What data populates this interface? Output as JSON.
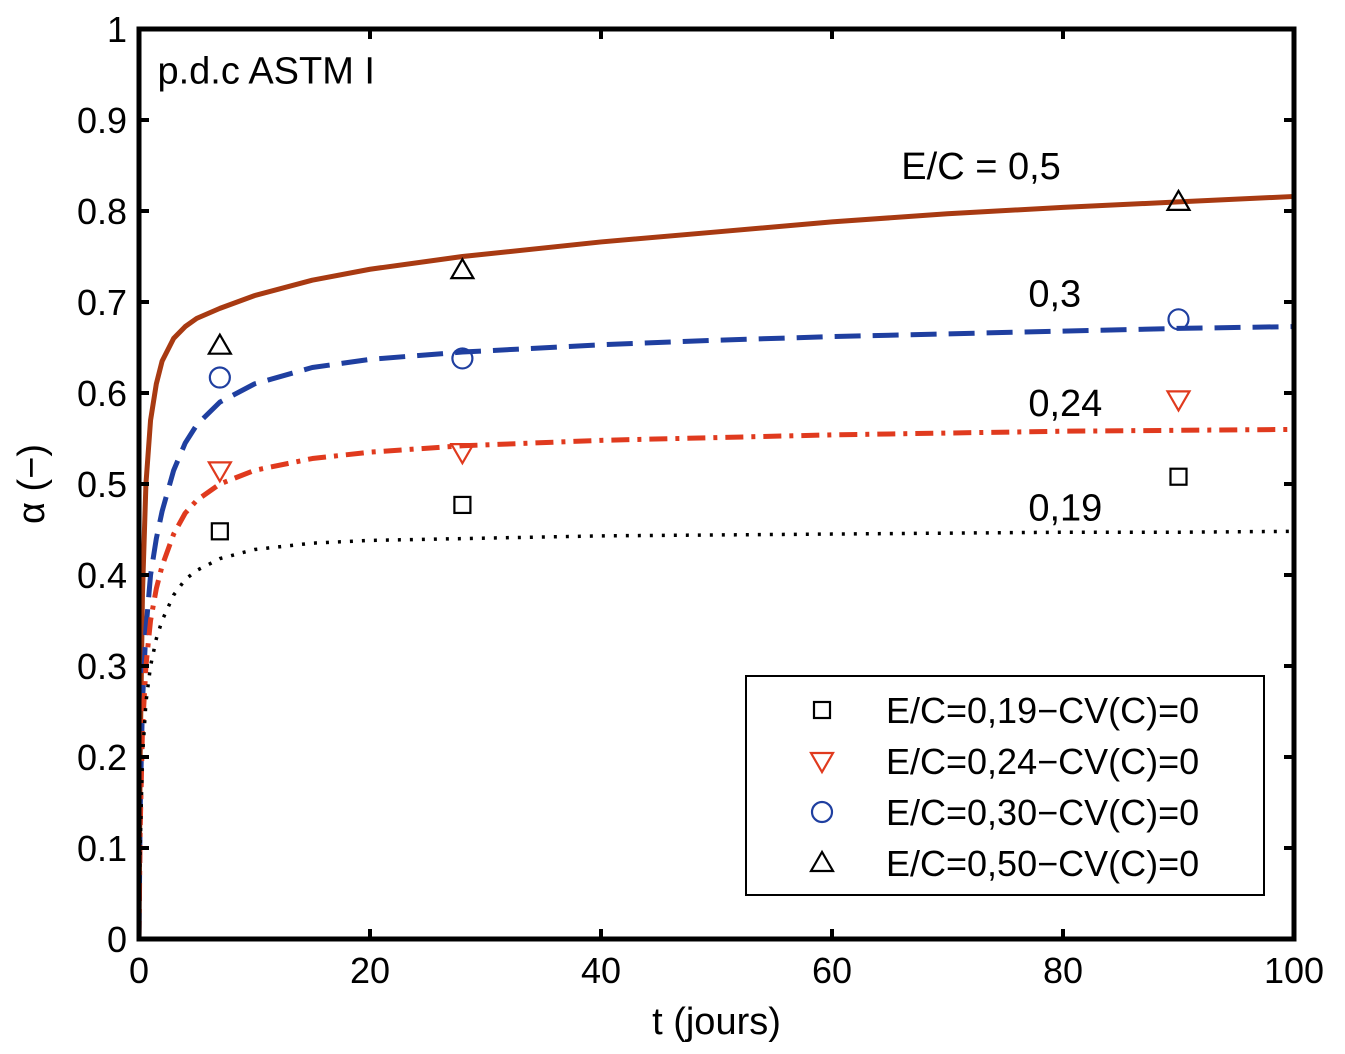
{
  "chart_data": {
    "type": "line",
    "title": "",
    "xlabel": "t (jours)",
    "ylabel": "α (−)",
    "xlim": [
      0,
      100
    ],
    "ylim": [
      0,
      1
    ],
    "xticks": [
      0,
      20,
      40,
      60,
      80,
      100
    ],
    "yticks": [
      0,
      0.1,
      0.2,
      0.3,
      0.4,
      0.5,
      0.6,
      0.7,
      0.8,
      0.9,
      1
    ],
    "xtick_labels": [
      "0",
      "20",
      "40",
      "60",
      "80",
      "100"
    ],
    "ytick_labels": [
      "0",
      "0.1",
      "0.2",
      "0.3",
      "0.4",
      "0.5",
      "0.6",
      "0.7",
      "0.8",
      "0.9",
      "1"
    ],
    "grid": false,
    "legend_position": "bottom-right",
    "annotations": [
      {
        "text": "p.d.c ASTM I",
        "x": 1.6,
        "y": 0.94
      },
      {
        "text": "E/C = 0,5",
        "x": 66,
        "y": 0.835
      },
      {
        "text": "0,3",
        "x": 77,
        "y": 0.695
      },
      {
        "text": "0,24",
        "x": 77,
        "y": 0.575
      },
      {
        "text": "0,19",
        "x": 77,
        "y": 0.46
      }
    ],
    "series": [
      {
        "name": "E/C = 0,5",
        "kind": "line",
        "style": "solid",
        "color": "#a83a12",
        "x": [
          0,
          0.1,
          0.3,
          0.6,
          1,
          1.5,
          2,
          3,
          4,
          5,
          7,
          10,
          15,
          20,
          28,
          40,
          50,
          60,
          70,
          80,
          90,
          100
        ],
        "y": [
          0,
          0.2,
          0.38,
          0.5,
          0.57,
          0.61,
          0.635,
          0.66,
          0.673,
          0.682,
          0.693,
          0.707,
          0.724,
          0.736,
          0.75,
          0.766,
          0.777,
          0.788,
          0.797,
          0.804,
          0.81,
          0.816
        ]
      },
      {
        "name": "0,3",
        "kind": "line",
        "style": "dashed",
        "color": "#1f3fa0",
        "x": [
          0,
          0.1,
          0.3,
          0.6,
          1,
          1.5,
          2,
          3,
          4,
          5,
          7,
          10,
          15,
          20,
          28,
          40,
          50,
          60,
          70,
          80,
          90,
          100
        ],
        "y": [
          0,
          0.14,
          0.26,
          0.34,
          0.4,
          0.44,
          0.47,
          0.515,
          0.545,
          0.565,
          0.59,
          0.61,
          0.628,
          0.637,
          0.645,
          0.653,
          0.658,
          0.662,
          0.665,
          0.668,
          0.671,
          0.673
        ]
      },
      {
        "name": "0,24",
        "kind": "line",
        "style": "dashdot",
        "color": "#e03a1e",
        "x": [
          0,
          0.1,
          0.3,
          0.6,
          1,
          1.5,
          2,
          3,
          4,
          5,
          7,
          10,
          15,
          20,
          28,
          40,
          50,
          60,
          70,
          80,
          90,
          100
        ],
        "y": [
          0,
          0.12,
          0.23,
          0.3,
          0.35,
          0.385,
          0.41,
          0.445,
          0.468,
          0.482,
          0.5,
          0.515,
          0.528,
          0.535,
          0.542,
          0.548,
          0.551,
          0.554,
          0.556,
          0.558,
          0.559,
          0.56
        ]
      },
      {
        "name": "0,19",
        "kind": "line",
        "style": "dotted",
        "color": "#000000",
        "x": [
          0,
          0.1,
          0.3,
          0.6,
          1,
          1.5,
          2,
          3,
          4,
          5,
          7,
          10,
          15,
          20,
          28,
          40,
          50,
          60,
          70,
          80,
          90,
          100
        ],
        "y": [
          0,
          0.1,
          0.2,
          0.26,
          0.3,
          0.33,
          0.35,
          0.378,
          0.395,
          0.405,
          0.418,
          0.428,
          0.435,
          0.438,
          0.44,
          0.443,
          0.444,
          0.445,
          0.446,
          0.447,
          0.447,
          0.448
        ]
      },
      {
        "name": "E/C=0,19−CV(C)=0",
        "kind": "marker",
        "marker": "square",
        "color": "#000000",
        "x": [
          7,
          28,
          90
        ],
        "y": [
          0.448,
          0.477,
          0.508
        ]
      },
      {
        "name": "E/C=0,24−CV(C)=0",
        "kind": "marker",
        "marker": "triangle-down",
        "color": "#e03a1e",
        "x": [
          7,
          28,
          90
        ],
        "y": [
          0.515,
          0.535,
          0.593
        ]
      },
      {
        "name": "E/C=0,30−CV(C)=0",
        "kind": "marker",
        "marker": "circle",
        "color": "#1f3fa0",
        "x": [
          7,
          28,
          90
        ],
        "y": [
          0.617,
          0.638,
          0.681
        ]
      },
      {
        "name": "E/C=0,50−CV(C)=0",
        "kind": "marker",
        "marker": "triangle-up",
        "color": "#000000",
        "x": [
          7,
          28,
          90
        ],
        "y": [
          0.652,
          0.735,
          0.81
        ]
      }
    ],
    "legend": [
      {
        "label": "E/C=0,19−CV(C)=0",
        "marker": "square",
        "color": "#000000"
      },
      {
        "label": "E/C=0,24−CV(C)=0",
        "marker": "triangle-down",
        "color": "#e03a1e"
      },
      {
        "label": "E/C=0,30−CV(C)=0",
        "marker": "circle",
        "color": "#1f3fa0"
      },
      {
        "label": "E/C=0,50−CV(C)=0",
        "marker": "triangle-up",
        "color": "#000000"
      }
    ]
  }
}
